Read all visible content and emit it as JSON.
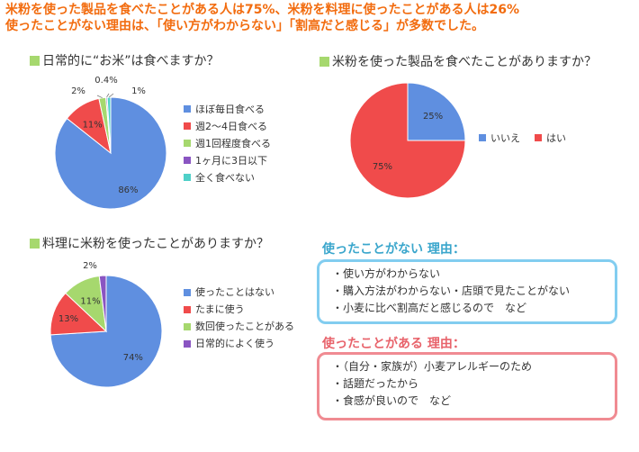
{
  "headline": {
    "line1": "米粉を使った製品を食べたことがある人は75%、米粉を料理に使ったことがある人は26%",
    "line2": "使ったことがない理由は、「使い方がわからない」「割高だと感じる」が多数でした。"
  },
  "colors": {
    "headline": "#f26c0f",
    "title_square": "#a6d86e",
    "blue": "#5f8fe0",
    "red": "#f04b4b",
    "green": "#a6d86e",
    "purple": "#8a55c2",
    "cyan": "#4fd0c8",
    "reason_never": "#3aa6cc",
    "reason_used": "#e8636b",
    "box_never_border": "#82cdf0",
    "box_used_border": "#f08b92"
  },
  "chart_data": [
    {
      "type": "pie",
      "title": "日常的に“お米”は食べますか？",
      "slices": [
        {
          "label": "ほぼ毎日食べる",
          "value": 86,
          "display": "86%",
          "color": "#5f8fe0"
        },
        {
          "label": "週2〜4日食べる",
          "value": 11,
          "display": "11%",
          "color": "#f04b4b"
        },
        {
          "label": "週1回程度食べる",
          "value": 2,
          "display": "2%",
          "color": "#a6d86e"
        },
        {
          "label": "1ヶ月に3日以下",
          "value": 0.4,
          "display": "0.4%",
          "color": "#8a55c2"
        },
        {
          "label": "全く食べない",
          "value": 1,
          "display": "1%",
          "color": "#4fd0c8"
        }
      ],
      "legend": "right"
    },
    {
      "type": "pie",
      "title": "米粉を使った製品を食べたことがありますか？",
      "slices": [
        {
          "label": "いいえ",
          "value": 25,
          "display": "25%",
          "color": "#5f8fe0"
        },
        {
          "label": "はい",
          "value": 75,
          "display": "75%",
          "color": "#f04b4b"
        }
      ],
      "legend": "right"
    },
    {
      "type": "pie",
      "title": "料理に米粉を使ったことがありますか？",
      "slices": [
        {
          "label": "使ったことはない",
          "value": 74,
          "display": "74%",
          "color": "#5f8fe0"
        },
        {
          "label": "たまに使う",
          "value": 13,
          "display": "13%",
          "color": "#f04b4b"
        },
        {
          "label": "数回使ったことがある",
          "value": 11,
          "display": "11%",
          "color": "#a6d86e"
        },
        {
          "label": "日常的によく使う",
          "value": 2,
          "display": "2%",
          "color": "#8a55c2"
        }
      ],
      "legend": "right"
    }
  ],
  "reasons": {
    "never": {
      "title": "使ったことがない 理由：",
      "items": [
        "・使い方がわからない",
        "・購入方法がわからない・店頭で見たことがない",
        "・小麦に比べ割高だと感じるので　など"
      ]
    },
    "used": {
      "title": "使ったことがある 理由：",
      "items": [
        "・（自分・家族が）小麦アレルギーのため",
        "・話題だったから",
        "・食感が良いので　など"
      ]
    }
  }
}
